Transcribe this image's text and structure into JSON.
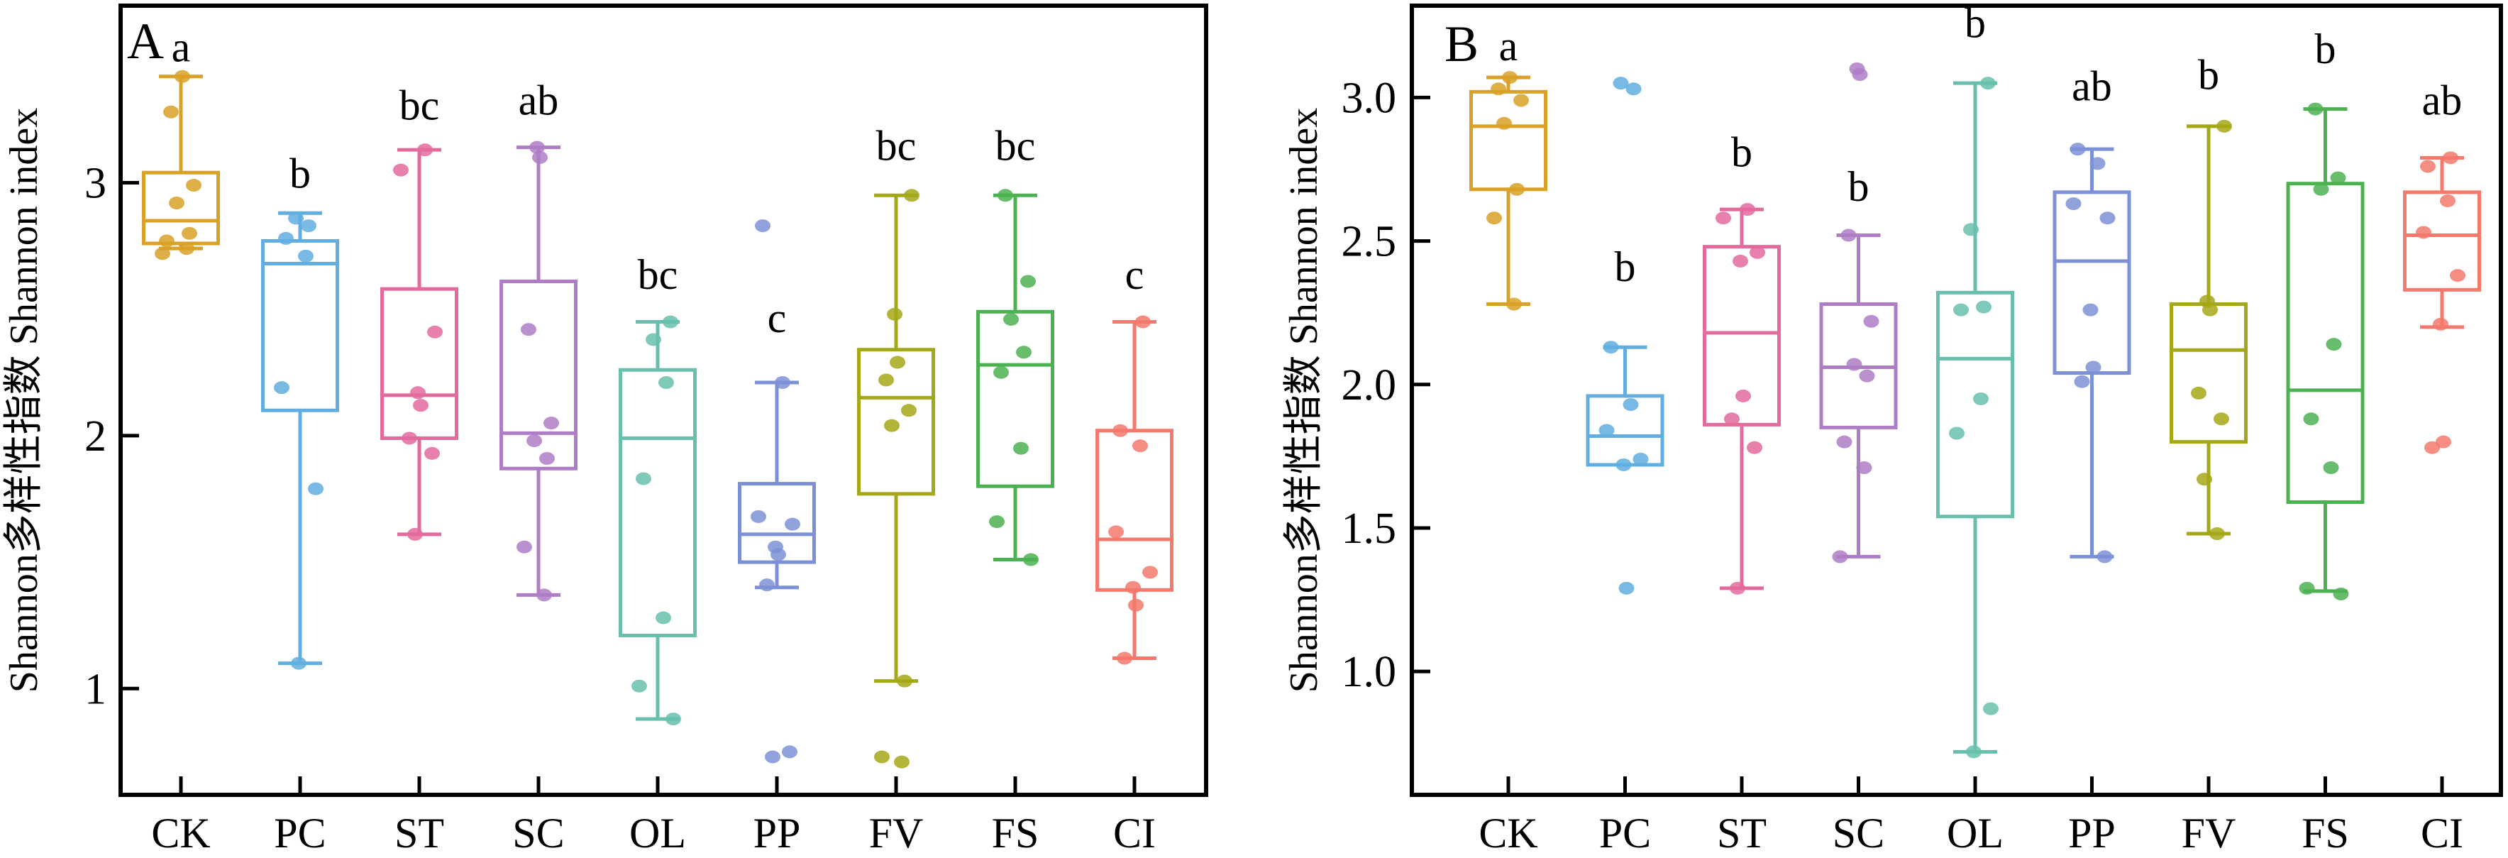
{
  "chart_data": {
    "type": "box",
    "title": "",
    "ylabel": "Shannon多样性指数 Shannon index",
    "categories": [
      "CK",
      "PC",
      "ST",
      "SC",
      "OL",
      "PP",
      "FV",
      "FS",
      "CI"
    ],
    "grid": false,
    "legend": "none",
    "panels": [
      {
        "label": "A",
        "ylim": [
          0.58,
          3.7
        ],
        "y_ticks": [
          1,
          2,
          3
        ],
        "y_tick_labels": [
          "1",
          "2",
          "3"
        ],
        "groups": [
          {
            "name": "CK",
            "color": "#D9A127",
            "letter": "a",
            "letter_v": 3.48,
            "low": 2.74,
            "q1": 2.76,
            "median": 2.85,
            "q3": 3.04,
            "high": 3.42,
            "points": [
              3.42,
              3.28,
              2.99,
              2.92,
              2.8,
              2.77,
              2.74,
              2.72
            ]
          },
          {
            "name": "PC",
            "color": "#62AEE0",
            "letter": "b",
            "letter_v": 2.98,
            "low": 1.1,
            "q1": 2.1,
            "median": 2.68,
            "q3": 2.77,
            "high": 2.88,
            "points": [
              2.86,
              2.83,
              2.78,
              2.71,
              2.19,
              1.79,
              1.1
            ]
          },
          {
            "name": "ST",
            "color": "#E36A9D",
            "letter": "bc",
            "letter_v": 3.25,
            "low": 1.61,
            "q1": 1.99,
            "median": 2.16,
            "q3": 2.58,
            "high": 3.13,
            "points": [
              3.13,
              3.05,
              2.41,
              2.17,
              2.12,
              1.99,
              1.93,
              1.61
            ]
          },
          {
            "name": "SC",
            "color": "#AF7DC5",
            "letter": "ab",
            "letter_v": 3.27,
            "low": 1.37,
            "q1": 1.87,
            "median": 2.01,
            "q3": 2.61,
            "high": 3.14,
            "points": [
              3.14,
              3.1,
              2.42,
              2.05,
              1.98,
              1.91,
              1.56,
              1.37
            ]
          },
          {
            "name": "OL",
            "color": "#69BFAE",
            "letter": "bc",
            "letter_v": 2.58,
            "low": 0.88,
            "q1": 1.21,
            "median": 1.99,
            "q3": 2.26,
            "high": 2.45,
            "points": [
              2.45,
              2.38,
              2.21,
              1.83,
              1.28,
              1.01,
              0.88
            ]
          },
          {
            "name": "PP",
            "color": "#7C90D6",
            "letter": "c",
            "letter_v": 2.41,
            "low": 1.4,
            "q1": 1.5,
            "median": 1.61,
            "q3": 1.81,
            "high": 2.21,
            "points": [
              2.83,
              2.21,
              1.68,
              1.65,
              1.56,
              1.53,
              1.41,
              0.75,
              0.73
            ]
          },
          {
            "name": "FV",
            "color": "#A4A818",
            "letter": "bc",
            "letter_v": 3.09,
            "low": 1.03,
            "q1": 1.77,
            "median": 2.15,
            "q3": 2.34,
            "high": 2.95,
            "points": [
              2.95,
              2.48,
              2.29,
              2.22,
              2.1,
              2.04,
              1.03,
              0.73,
              0.71
            ]
          },
          {
            "name": "FS",
            "color": "#4CB151",
            "letter": "bc",
            "letter_v": 3.09,
            "low": 1.51,
            "q1": 1.8,
            "median": 2.28,
            "q3": 2.49,
            "high": 2.95,
            "points": [
              2.95,
              2.61,
              2.46,
              2.33,
              2.25,
              1.95,
              1.66,
              1.51
            ]
          },
          {
            "name": "CI",
            "color": "#F3796C",
            "letter": "c",
            "letter_v": 2.58,
            "low": 1.12,
            "q1": 1.39,
            "median": 1.59,
            "q3": 2.02,
            "high": 2.45,
            "points": [
              2.45,
              2.02,
              1.96,
              1.62,
              1.46,
              1.4,
              1.33,
              1.12
            ]
          }
        ]
      },
      {
        "label": "B",
        "ylim": [
          0.57,
          3.32
        ],
        "y_ticks": [
          1.0,
          1.5,
          2.0,
          2.5,
          3.0
        ],
        "y_tick_labels": [
          "1.0",
          "1.5",
          "2.0",
          "2.5",
          "3.0"
        ],
        "groups": [
          {
            "name": "CK",
            "color": "#D9A127",
            "letter": "a",
            "letter_v": 3.13,
            "low": 2.28,
            "q1": 2.68,
            "median": 2.9,
            "q3": 3.02,
            "high": 3.07,
            "points": [
              3.07,
              3.03,
              2.99,
              2.91,
              2.68,
              2.58,
              2.28
            ]
          },
          {
            "name": "PC",
            "color": "#62AEE0",
            "letter": "b",
            "letter_v": 2.36,
            "low": 1.72,
            "q1": 1.72,
            "median": 1.82,
            "q3": 1.96,
            "high": 2.13,
            "points": [
              3.05,
              3.03,
              2.13,
              1.93,
              1.84,
              1.74,
              1.72,
              1.29
            ]
          },
          {
            "name": "ST",
            "color": "#E36A9D",
            "letter": "b",
            "letter_v": 2.76,
            "low": 1.29,
            "q1": 1.86,
            "median": 2.18,
            "q3": 2.48,
            "high": 2.61,
            "points": [
              2.61,
              2.58,
              2.46,
              2.43,
              1.96,
              1.88,
              1.78,
              1.29
            ]
          },
          {
            "name": "SC",
            "color": "#AF7DC5",
            "letter": "b",
            "letter_v": 2.64,
            "low": 1.4,
            "q1": 1.85,
            "median": 2.06,
            "q3": 2.28,
            "high": 2.52,
            "points": [
              3.1,
              3.08,
              2.52,
              2.22,
              2.07,
              2.03,
              1.8,
              1.71,
              1.4
            ]
          },
          {
            "name": "OL",
            "color": "#69BFAE",
            "letter": "b",
            "letter_v": 3.21,
            "low": 0.72,
            "q1": 1.54,
            "median": 2.09,
            "q3": 2.32,
            "high": 3.05,
            "points": [
              3.05,
              2.54,
              2.27,
              2.26,
              1.95,
              1.83,
              0.87,
              0.72
            ]
          },
          {
            "name": "PP",
            "color": "#7C90D6",
            "letter": "ab",
            "letter_v": 2.99,
            "low": 1.4,
            "q1": 2.04,
            "median": 2.43,
            "q3": 2.67,
            "high": 2.82,
            "points": [
              2.82,
              2.77,
              2.63,
              2.58,
              2.26,
              2.06,
              2.01,
              1.4
            ]
          },
          {
            "name": "FV",
            "color": "#A4A818",
            "letter": "b",
            "letter_v": 3.03,
            "low": 1.48,
            "q1": 1.8,
            "median": 2.12,
            "q3": 2.28,
            "high": 2.9,
            "points": [
              2.9,
              2.29,
              2.26,
              1.97,
              1.88,
              1.67,
              1.48
            ]
          },
          {
            "name": "FS",
            "color": "#4CB151",
            "letter": "b",
            "letter_v": 3.12,
            "low": 1.28,
            "q1": 1.59,
            "median": 1.98,
            "q3": 2.7,
            "high": 2.96,
            "points": [
              2.96,
              2.72,
              2.68,
              2.14,
              1.88,
              1.71,
              1.29,
              1.27
            ]
          },
          {
            "name": "CI",
            "color": "#F3796C",
            "letter": "ab",
            "letter_v": 2.94,
            "low": 2.2,
            "q1": 2.33,
            "median": 2.52,
            "q3": 2.67,
            "high": 2.79,
            "points": [
              2.79,
              2.76,
              2.64,
              2.53,
              2.38,
              2.21,
              1.8,
              1.78
            ]
          }
        ]
      }
    ]
  }
}
